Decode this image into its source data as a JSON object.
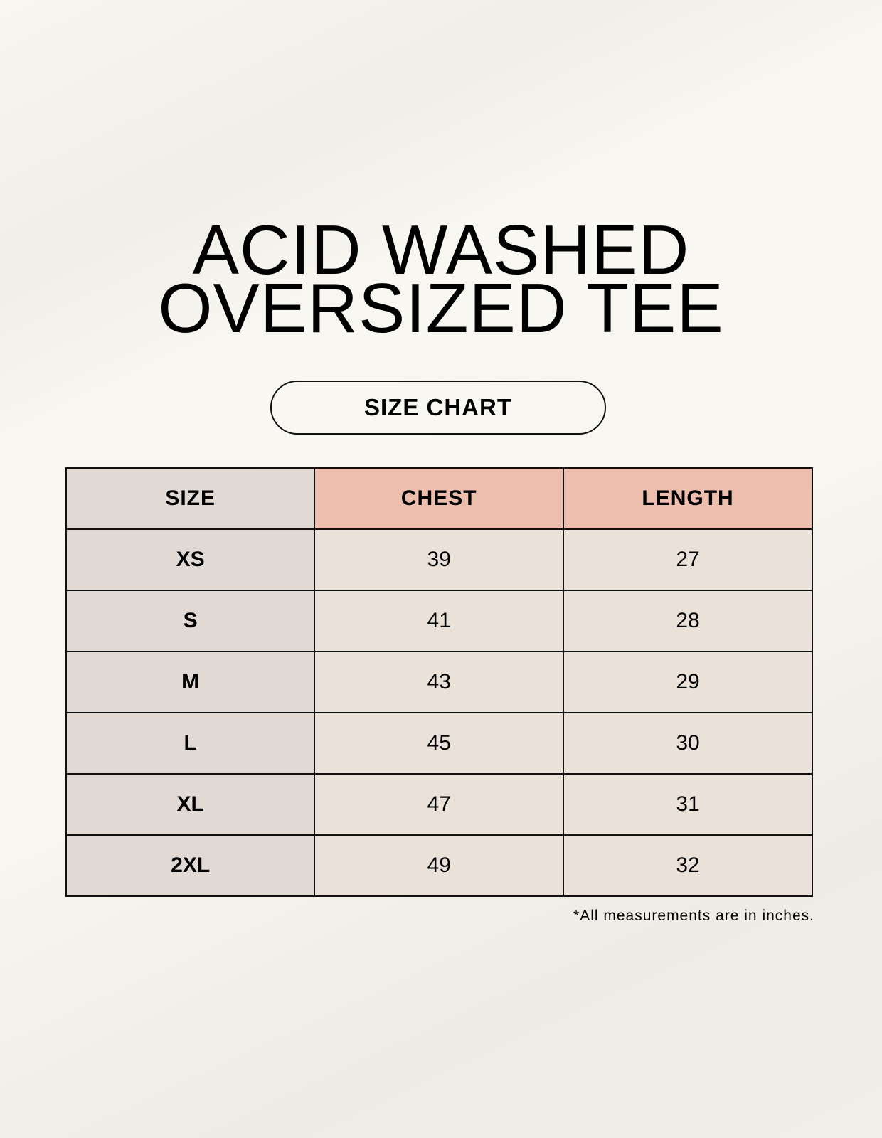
{
  "title": {
    "line1": "ACID WASHED",
    "line2": "OVERSIZED TEE"
  },
  "subtitle_pill": "SIZE CHART",
  "colors": {
    "size_column": "#e0d9d4",
    "header_measure": "#edbdae",
    "value_cells": "#eae2d8"
  },
  "table": {
    "headers": [
      "SIZE",
      "CHEST",
      "LENGTH"
    ],
    "rows": [
      {
        "size": "XS",
        "chest": "39",
        "length": "27"
      },
      {
        "size": "S",
        "chest": "41",
        "length": "28"
      },
      {
        "size": "M",
        "chest": "43",
        "length": "29"
      },
      {
        "size": "L",
        "chest": "45",
        "length": "30"
      },
      {
        "size": "XL",
        "chest": "47",
        "length": "31"
      },
      {
        "size": "2XL",
        "chest": "49",
        "length": "32"
      }
    ]
  },
  "footnote": "*All measurements are in inches."
}
